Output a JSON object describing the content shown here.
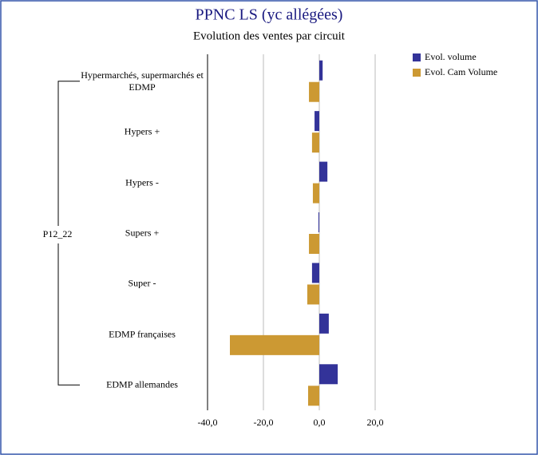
{
  "chart_data": {
    "type": "hbar",
    "title": "PPNC LS (yc allégées)",
    "subtitle": "Evolution des ventes par circuit",
    "group_label": "P12_22",
    "categories": [
      "Hypermarchés, supermarchés et EDMP",
      "Hypers +",
      "Hypers -",
      "Supers +",
      "Super -",
      "EDMP françaises",
      "EDMP allemandes"
    ],
    "series": [
      {
        "name": "Evol. volume",
        "color": "#333399",
        "values": [
          1.2,
          -1.7,
          2.9,
          -0.3,
          -2.6,
          3.4,
          6.6
        ]
      },
      {
        "name": "Evol. Cam Volume",
        "color": "#cc9933",
        "values": [
          -3.7,
          -2.6,
          -2.3,
          -3.7,
          -4.3,
          -32,
          -4.0
        ]
      }
    ],
    "xlim": [
      -40,
      20
    ],
    "xticks": [
      {
        "value": -40,
        "label": "-40,0"
      },
      {
        "value": -20,
        "label": "-20,0"
      },
      {
        "value": 0,
        "label": "0,0"
      },
      {
        "value": 20,
        "label": "20,0"
      }
    ],
    "grid": true,
    "legend": "top-right"
  }
}
